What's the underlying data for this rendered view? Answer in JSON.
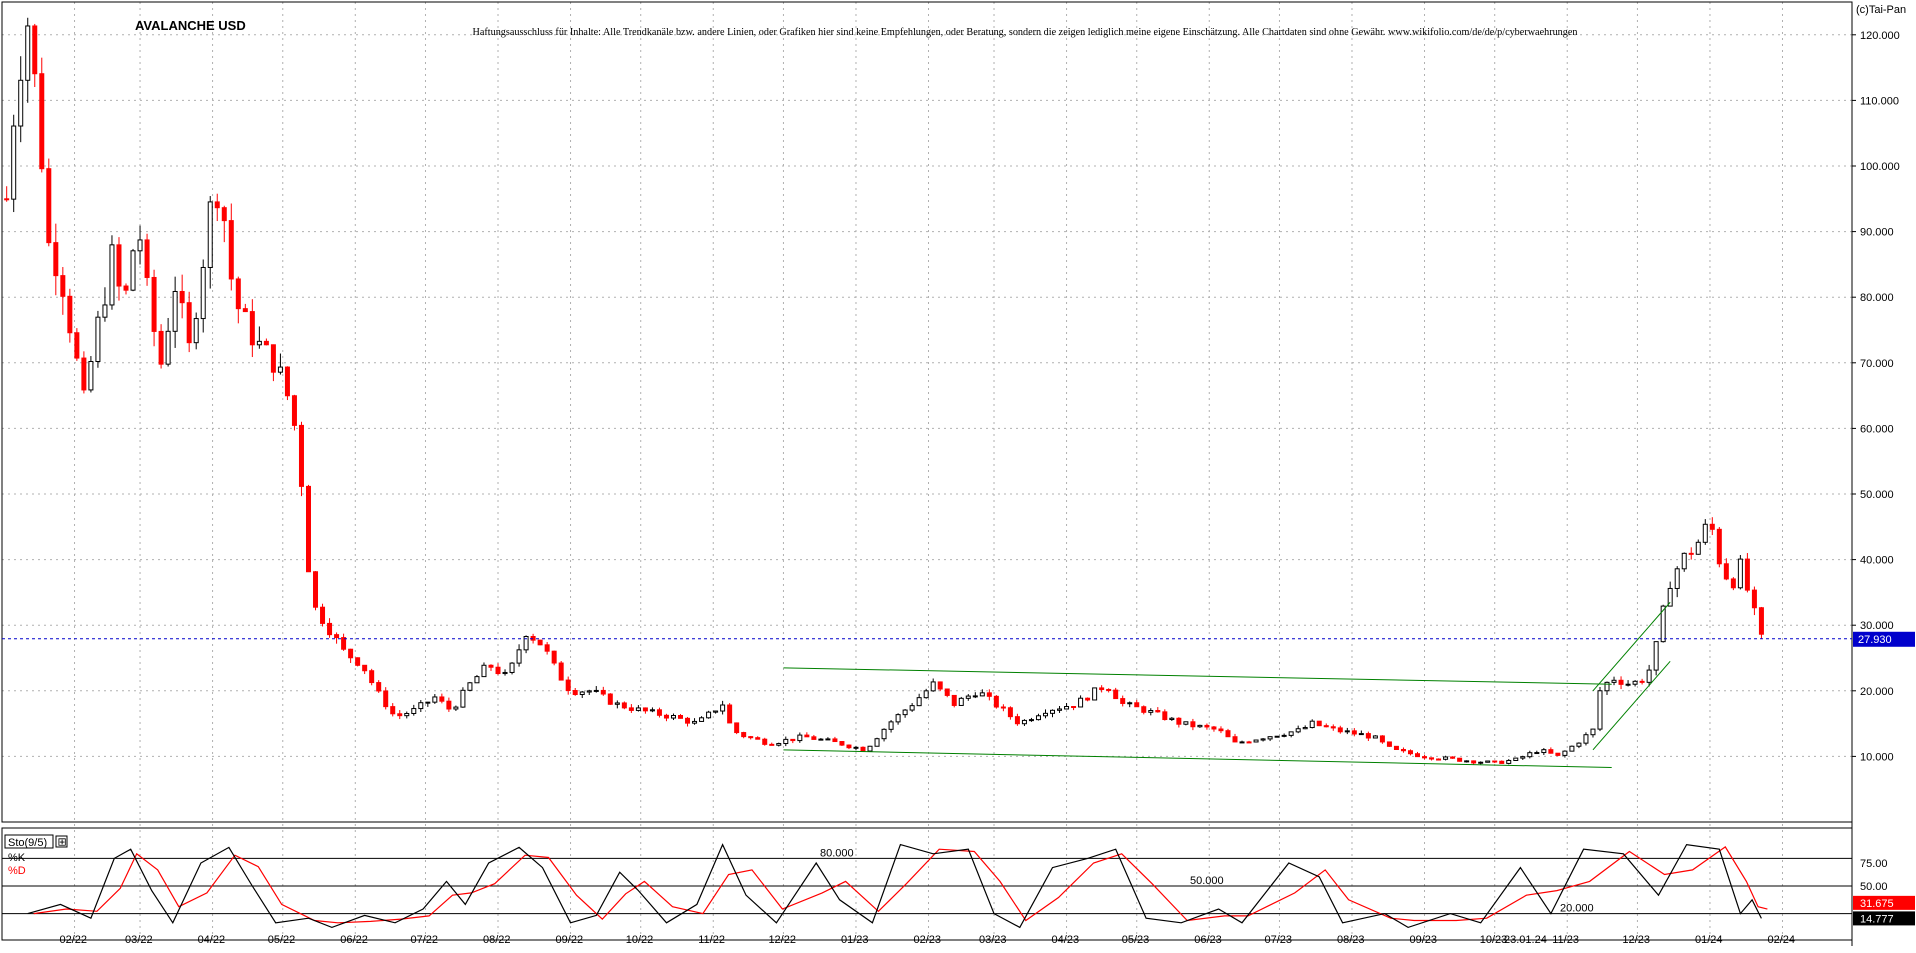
{
  "chart_data": [
    {
      "type": "candlestick",
      "title": "AVALANCHE USD",
      "disclaimer": "Haftungsausschluss für Inhalte: Alle Trendkanäle bzw. andere Linien, oder Grafiken hier sind keine Empfehlungen, oder Beratung, sondern die zeigen lediglich meine eigene Einschätzung. Alle Chartdaten sind ohne Gewähr. www.wikifolio.com/de/de/p/cyberwaehrungen",
      "copyright": "(c)Tai-Pan",
      "ylim": [
        0,
        125
      ],
      "yticks": [
        "120.000",
        "110.000",
        "100.000",
        "90.000",
        "80.000",
        "70.000",
        "60.000",
        "50.000",
        "40.000",
        "30.000",
        "20.000",
        "10.000"
      ],
      "ytick_values": [
        120,
        110,
        100,
        90,
        80,
        70,
        60,
        50,
        40,
        30,
        20,
        10
      ],
      "xticks": [
        "02/22",
        "03/22",
        "04/22",
        "05/22",
        "06/22",
        "07/22",
        "08/22",
        "09/22",
        "10/22",
        "11/22",
        "12/22",
        "01/23",
        "02/23",
        "03/23",
        "04/23",
        "05/23",
        "06/23",
        "07/23",
        "08/23",
        "09/23",
        "10/23",
        "11/23",
        "12/23",
        "01/24",
        "02/24"
      ],
      "last_date_label": "23.01.24",
      "current_price_label": "27.930",
      "current_price": 27.93,
      "grid": true,
      "colors": {
        "up": "#000000",
        "down": "#ff0000",
        "trendline": "#008000",
        "current_line": "#0000cc",
        "current_badge": "#0000cc"
      },
      "price_path": [
        {
          "date": "2022-01-03",
          "close": 95
        },
        {
          "date": "2022-01-07",
          "close": 112
        },
        {
          "date": "2022-01-12",
          "close": 122
        },
        {
          "date": "2022-01-16",
          "close": 110
        },
        {
          "date": "2022-01-21",
          "close": 88
        },
        {
          "date": "2022-01-26",
          "close": 84
        },
        {
          "date": "2022-02-01",
          "close": 72
        },
        {
          "date": "2022-02-05",
          "close": 64
        },
        {
          "date": "2022-02-10",
          "close": 74
        },
        {
          "date": "2022-02-17",
          "close": 86
        },
        {
          "date": "2022-02-22",
          "close": 78
        },
        {
          "date": "2022-02-28",
          "close": 92
        },
        {
          "date": "2022-03-05",
          "close": 78
        },
        {
          "date": "2022-03-10",
          "close": 70
        },
        {
          "date": "2022-03-16",
          "close": 82
        },
        {
          "date": "2022-03-22",
          "close": 72
        },
        {
          "date": "2022-03-28",
          "close": 86
        },
        {
          "date": "2022-04-02",
          "close": 98
        },
        {
          "date": "2022-04-06",
          "close": 92
        },
        {
          "date": "2022-04-10",
          "close": 80
        },
        {
          "date": "2022-04-15",
          "close": 76
        },
        {
          "date": "2022-04-22",
          "close": 72
        },
        {
          "date": "2022-04-28",
          "close": 70
        },
        {
          "date": "2022-05-04",
          "close": 64
        },
        {
          "date": "2022-05-08",
          "close": 57
        },
        {
          "date": "2022-05-11",
          "close": 42
        },
        {
          "date": "2022-05-14",
          "close": 33
        },
        {
          "date": "2022-05-20",
          "close": 30
        },
        {
          "date": "2022-05-27",
          "close": 26
        },
        {
          "date": "2022-06-04",
          "close": 24
        },
        {
          "date": "2022-06-10",
          "close": 20
        },
        {
          "date": "2022-06-18",
          "close": 16
        },
        {
          "date": "2022-06-26",
          "close": 17
        },
        {
          "date": "2022-07-05",
          "close": 19
        },
        {
          "date": "2022-07-12",
          "close": 17
        },
        {
          "date": "2022-07-20",
          "close": 21
        },
        {
          "date": "2022-07-28",
          "close": 24
        },
        {
          "date": "2022-08-05",
          "close": 22
        },
        {
          "date": "2022-08-13",
          "close": 29
        },
        {
          "date": "2022-08-20",
          "close": 27
        },
        {
          "date": "2022-08-26",
          "close": 23
        },
        {
          "date": "2022-09-01",
          "close": 20
        },
        {
          "date": "2022-09-10",
          "close": 20
        },
        {
          "date": "2022-09-20",
          "close": 18
        },
        {
          "date": "2022-10-01",
          "close": 17
        },
        {
          "date": "2022-10-15",
          "close": 16
        },
        {
          "date": "2022-10-25",
          "close": 15
        },
        {
          "date": "2022-11-05",
          "close": 18
        },
        {
          "date": "2022-11-09",
          "close": 14
        },
        {
          "date": "2022-11-15",
          "close": 13
        },
        {
          "date": "2022-11-25",
          "close": 12
        },
        {
          "date": "2022-12-10",
          "close": 13
        },
        {
          "date": "2022-12-25",
          "close": 12
        },
        {
          "date": "2023-01-05",
          "close": 11
        },
        {
          "date": "2023-01-15",
          "close": 15
        },
        {
          "date": "2023-01-25",
          "close": 18
        },
        {
          "date": "2023-02-03",
          "close": 21
        },
        {
          "date": "2023-02-12",
          "close": 18
        },
        {
          "date": "2023-02-22",
          "close": 20
        },
        {
          "date": "2023-03-05",
          "close": 17
        },
        {
          "date": "2023-03-12",
          "close": 15
        },
        {
          "date": "2023-03-22",
          "close": 17
        },
        {
          "date": "2023-04-05",
          "close": 18
        },
        {
          "date": "2023-04-18",
          "close": 21
        },
        {
          "date": "2023-04-25",
          "close": 18
        },
        {
          "date": "2023-05-05",
          "close": 17
        },
        {
          "date": "2023-05-20",
          "close": 15
        },
        {
          "date": "2023-06-05",
          "close": 14
        },
        {
          "date": "2023-06-12",
          "close": 12
        },
        {
          "date": "2023-06-25",
          "close": 13
        },
        {
          "date": "2023-07-10",
          "close": 14
        },
        {
          "date": "2023-07-15",
          "close": 15
        },
        {
          "date": "2023-07-25",
          "close": 14
        },
        {
          "date": "2023-08-10",
          "close": 13
        },
        {
          "date": "2023-08-18",
          "close": 11
        },
        {
          "date": "2023-09-01",
          "close": 10
        },
        {
          "date": "2023-09-15",
          "close": 9.5
        },
        {
          "date": "2023-10-01",
          "close": 9
        },
        {
          "date": "2023-10-10",
          "close": 9.5
        },
        {
          "date": "2023-10-20",
          "close": 11
        },
        {
          "date": "2023-10-28",
          "close": 10
        },
        {
          "date": "2023-11-05",
          "close": 12
        },
        {
          "date": "2023-11-12",
          "close": 14
        },
        {
          "date": "2023-11-15",
          "close": 20
        },
        {
          "date": "2023-11-20",
          "close": 22
        },
        {
          "date": "2023-11-28",
          "close": 21
        },
        {
          "date": "2023-12-05",
          "close": 22
        },
        {
          "date": "2023-12-10",
          "close": 28
        },
        {
          "date": "2023-12-14",
          "close": 36
        },
        {
          "date": "2023-12-20",
          "close": 40
        },
        {
          "date": "2023-12-26",
          "close": 42
        },
        {
          "date": "2024-01-01",
          "close": 46
        },
        {
          "date": "2024-01-05",
          "close": 40
        },
        {
          "date": "2024-01-10",
          "close": 36
        },
        {
          "date": "2024-01-14",
          "close": 39
        },
        {
          "date": "2024-01-19",
          "close": 33
        },
        {
          "date": "2024-01-23",
          "close": 27.93
        }
      ],
      "trendlines": [
        {
          "name": "channel-top",
          "from": {
            "date": "2022-12-01",
            "y": 23.5
          },
          "to": {
            "date": "2023-11-20",
            "y": 21
          }
        },
        {
          "name": "channel-bottom",
          "from": {
            "date": "2022-12-01",
            "y": 11
          },
          "to": {
            "date": "2023-11-20",
            "y": 8.3
          }
        },
        {
          "name": "rise-upper",
          "from": {
            "date": "2023-11-12",
            "y": 20
          },
          "to": {
            "date": "2023-12-15",
            "y": 33.5
          }
        },
        {
          "name": "rise-lower",
          "from": {
            "date": "2023-11-12",
            "y": 11
          },
          "to": {
            "date": "2023-12-15",
            "y": 24.5
          }
        }
      ]
    },
    {
      "type": "line",
      "title": "Sto(9/5)",
      "legend_symbol": "⊞",
      "series_labels": [
        "%K",
        "%D"
      ],
      "series_colors": [
        "#000000",
        "#ff0000"
      ],
      "ylim": [
        0,
        100
      ],
      "levels": [
        {
          "value": 80,
          "label": "80.000"
        },
        {
          "value": 50,
          "label": "50.000"
        },
        {
          "value": 20,
          "label": "20.000"
        }
      ],
      "yticks": [
        "75.00",
        "50.00"
      ],
      "ytick_values": [
        75,
        50
      ],
      "last_values": [
        {
          "series": "%K",
          "label": "14.777",
          "value": 14.777
        },
        {
          "series": "%D",
          "label": "31.675",
          "value": 31.675
        }
      ],
      "k_values": [
        {
          "date": "2022-01-12",
          "value": 20
        },
        {
          "date": "2022-01-26",
          "value": 30
        },
        {
          "date": "2022-02-08",
          "value": 15
        },
        {
          "date": "2022-02-18",
          "value": 80
        },
        {
          "date": "2022-02-25",
          "value": 90
        },
        {
          "date": "2022-03-06",
          "value": 45
        },
        {
          "date": "2022-03-15",
          "value": 10
        },
        {
          "date": "2022-03-27",
          "value": 75
        },
        {
          "date": "2022-04-08",
          "value": 92
        },
        {
          "date": "2022-04-18",
          "value": 50
        },
        {
          "date": "2022-04-28",
          "value": 10
        },
        {
          "date": "2022-05-12",
          "value": 15
        },
        {
          "date": "2022-05-22",
          "value": 5
        },
        {
          "date": "2022-06-05",
          "value": 18
        },
        {
          "date": "2022-06-18",
          "value": 10
        },
        {
          "date": "2022-06-30",
          "value": 25
        },
        {
          "date": "2022-07-10",
          "value": 55
        },
        {
          "date": "2022-07-18",
          "value": 30
        },
        {
          "date": "2022-07-28",
          "value": 75
        },
        {
          "date": "2022-08-10",
          "value": 92
        },
        {
          "date": "2022-08-20",
          "value": 70
        },
        {
          "date": "2022-09-01",
          "value": 10
        },
        {
          "date": "2022-09-12",
          "value": 18
        },
        {
          "date": "2022-09-22",
          "value": 65
        },
        {
          "date": "2022-09-30",
          "value": 45
        },
        {
          "date": "2022-10-12",
          "value": 10
        },
        {
          "date": "2022-10-25",
          "value": 30
        },
        {
          "date": "2022-11-05",
          "value": 95
        },
        {
          "date": "2022-11-15",
          "value": 40
        },
        {
          "date": "2022-11-28",
          "value": 10
        },
        {
          "date": "2022-12-15",
          "value": 75
        },
        {
          "date": "2022-12-25",
          "value": 35
        },
        {
          "date": "2023-01-08",
          "value": 10
        },
        {
          "date": "2023-01-20",
          "value": 95
        },
        {
          "date": "2023-02-03",
          "value": 85
        },
        {
          "date": "2023-02-18",
          "value": 90
        },
        {
          "date": "2023-03-01",
          "value": 20
        },
        {
          "date": "2023-03-12",
          "value": 5
        },
        {
          "date": "2023-03-26",
          "value": 70
        },
        {
          "date": "2023-04-10",
          "value": 80
        },
        {
          "date": "2023-04-22",
          "value": 90
        },
        {
          "date": "2023-05-05",
          "value": 15
        },
        {
          "date": "2023-05-20",
          "value": 10
        },
        {
          "date": "2023-06-05",
          "value": 25
        },
        {
          "date": "2023-06-15",
          "value": 10
        },
        {
          "date": "2023-07-05",
          "value": 75
        },
        {
          "date": "2023-07-18",
          "value": 60
        },
        {
          "date": "2023-07-28",
          "value": 10
        },
        {
          "date": "2023-08-15",
          "value": 20
        },
        {
          "date": "2023-08-25",
          "value": 5
        },
        {
          "date": "2023-09-12",
          "value": 20
        },
        {
          "date": "2023-09-25",
          "value": 10
        },
        {
          "date": "2023-10-12",
          "value": 70
        },
        {
          "date": "2023-10-25",
          "value": 20
        },
        {
          "date": "2023-11-08",
          "value": 90
        },
        {
          "date": "2023-11-25",
          "value": 85
        },
        {
          "date": "2023-12-10",
          "value": 40
        },
        {
          "date": "2023-12-22",
          "value": 95
        },
        {
          "date": "2024-01-05",
          "value": 90
        },
        {
          "date": "2024-01-14",
          "value": 20
        },
        {
          "date": "2024-01-19",
          "value": 35
        },
        {
          "date": "2024-01-23",
          "value": 14.777
        }
      ]
    }
  ]
}
